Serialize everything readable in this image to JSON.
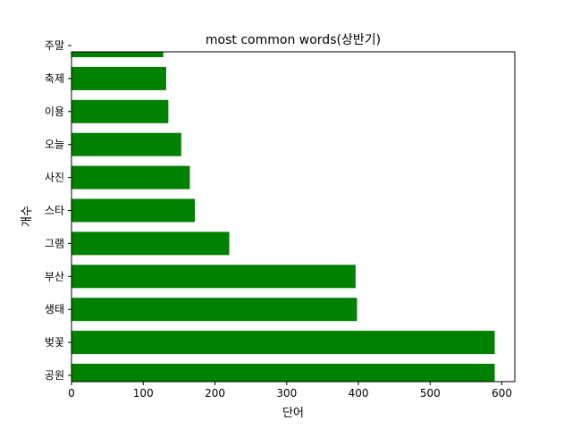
{
  "chart_data": {
    "type": "bar",
    "orientation": "horizontal",
    "title": "most common words(상반기)",
    "xlabel": "단어",
    "ylabel": "개수",
    "categories": [
      "공원",
      "벚꽃",
      "생태",
      "부산",
      "그램",
      "스타",
      "사진",
      "오늘",
      "이용",
      "축제",
      "주말"
    ],
    "values": [
      590,
      590,
      398,
      396,
      220,
      172,
      165,
      153,
      135,
      132,
      128
    ],
    "xlim": [
      0,
      618
    ],
    "xticks": [
      0,
      100,
      200,
      300,
      400,
      500,
      600
    ],
    "bar_color": "#008000",
    "grid": false,
    "legend": "none"
  }
}
